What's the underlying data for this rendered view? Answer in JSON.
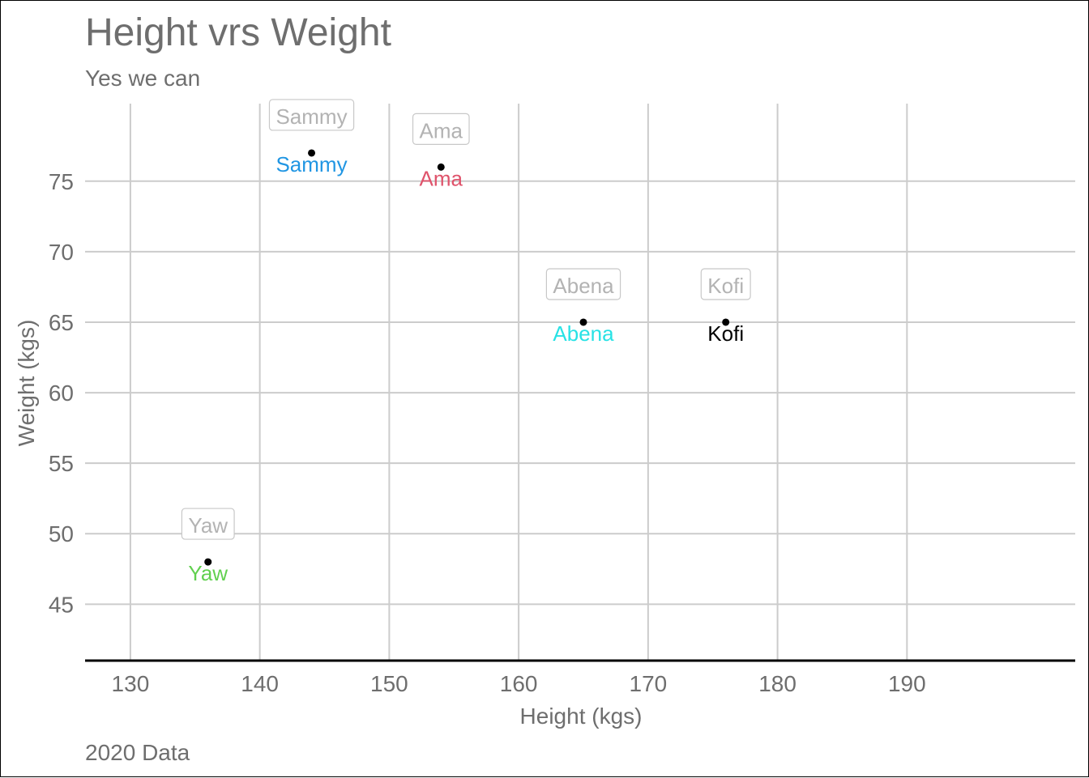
{
  "chart_data": {
    "type": "scatter",
    "title": "Height vrs Weight",
    "subtitle": "Yes we can",
    "caption": "2020 Data",
    "xlabel": "Height (kgs)",
    "ylabel": "Weight (kgs)",
    "xlim": [
      126.5,
      203
    ],
    "ylim": [
      41,
      80.5
    ],
    "xticks": [
      130,
      140,
      150,
      160,
      170,
      180,
      190
    ],
    "yticks": [
      45,
      50,
      55,
      60,
      65,
      70,
      75
    ],
    "grid": true,
    "points": [
      {
        "name": "Sammy",
        "x": 144,
        "y": 77,
        "color": "#2196e3"
      },
      {
        "name": "Ama",
        "x": 154,
        "y": 76,
        "color": "#df536b"
      },
      {
        "name": "Abena",
        "x": 165,
        "y": 65,
        "color": "#28e2e5"
      },
      {
        "name": "Kofi",
        "x": 176,
        "y": 65,
        "color": "#000000"
      },
      {
        "name": "Yaw",
        "x": 136,
        "y": 48,
        "color": "#61d04f"
      }
    ]
  }
}
